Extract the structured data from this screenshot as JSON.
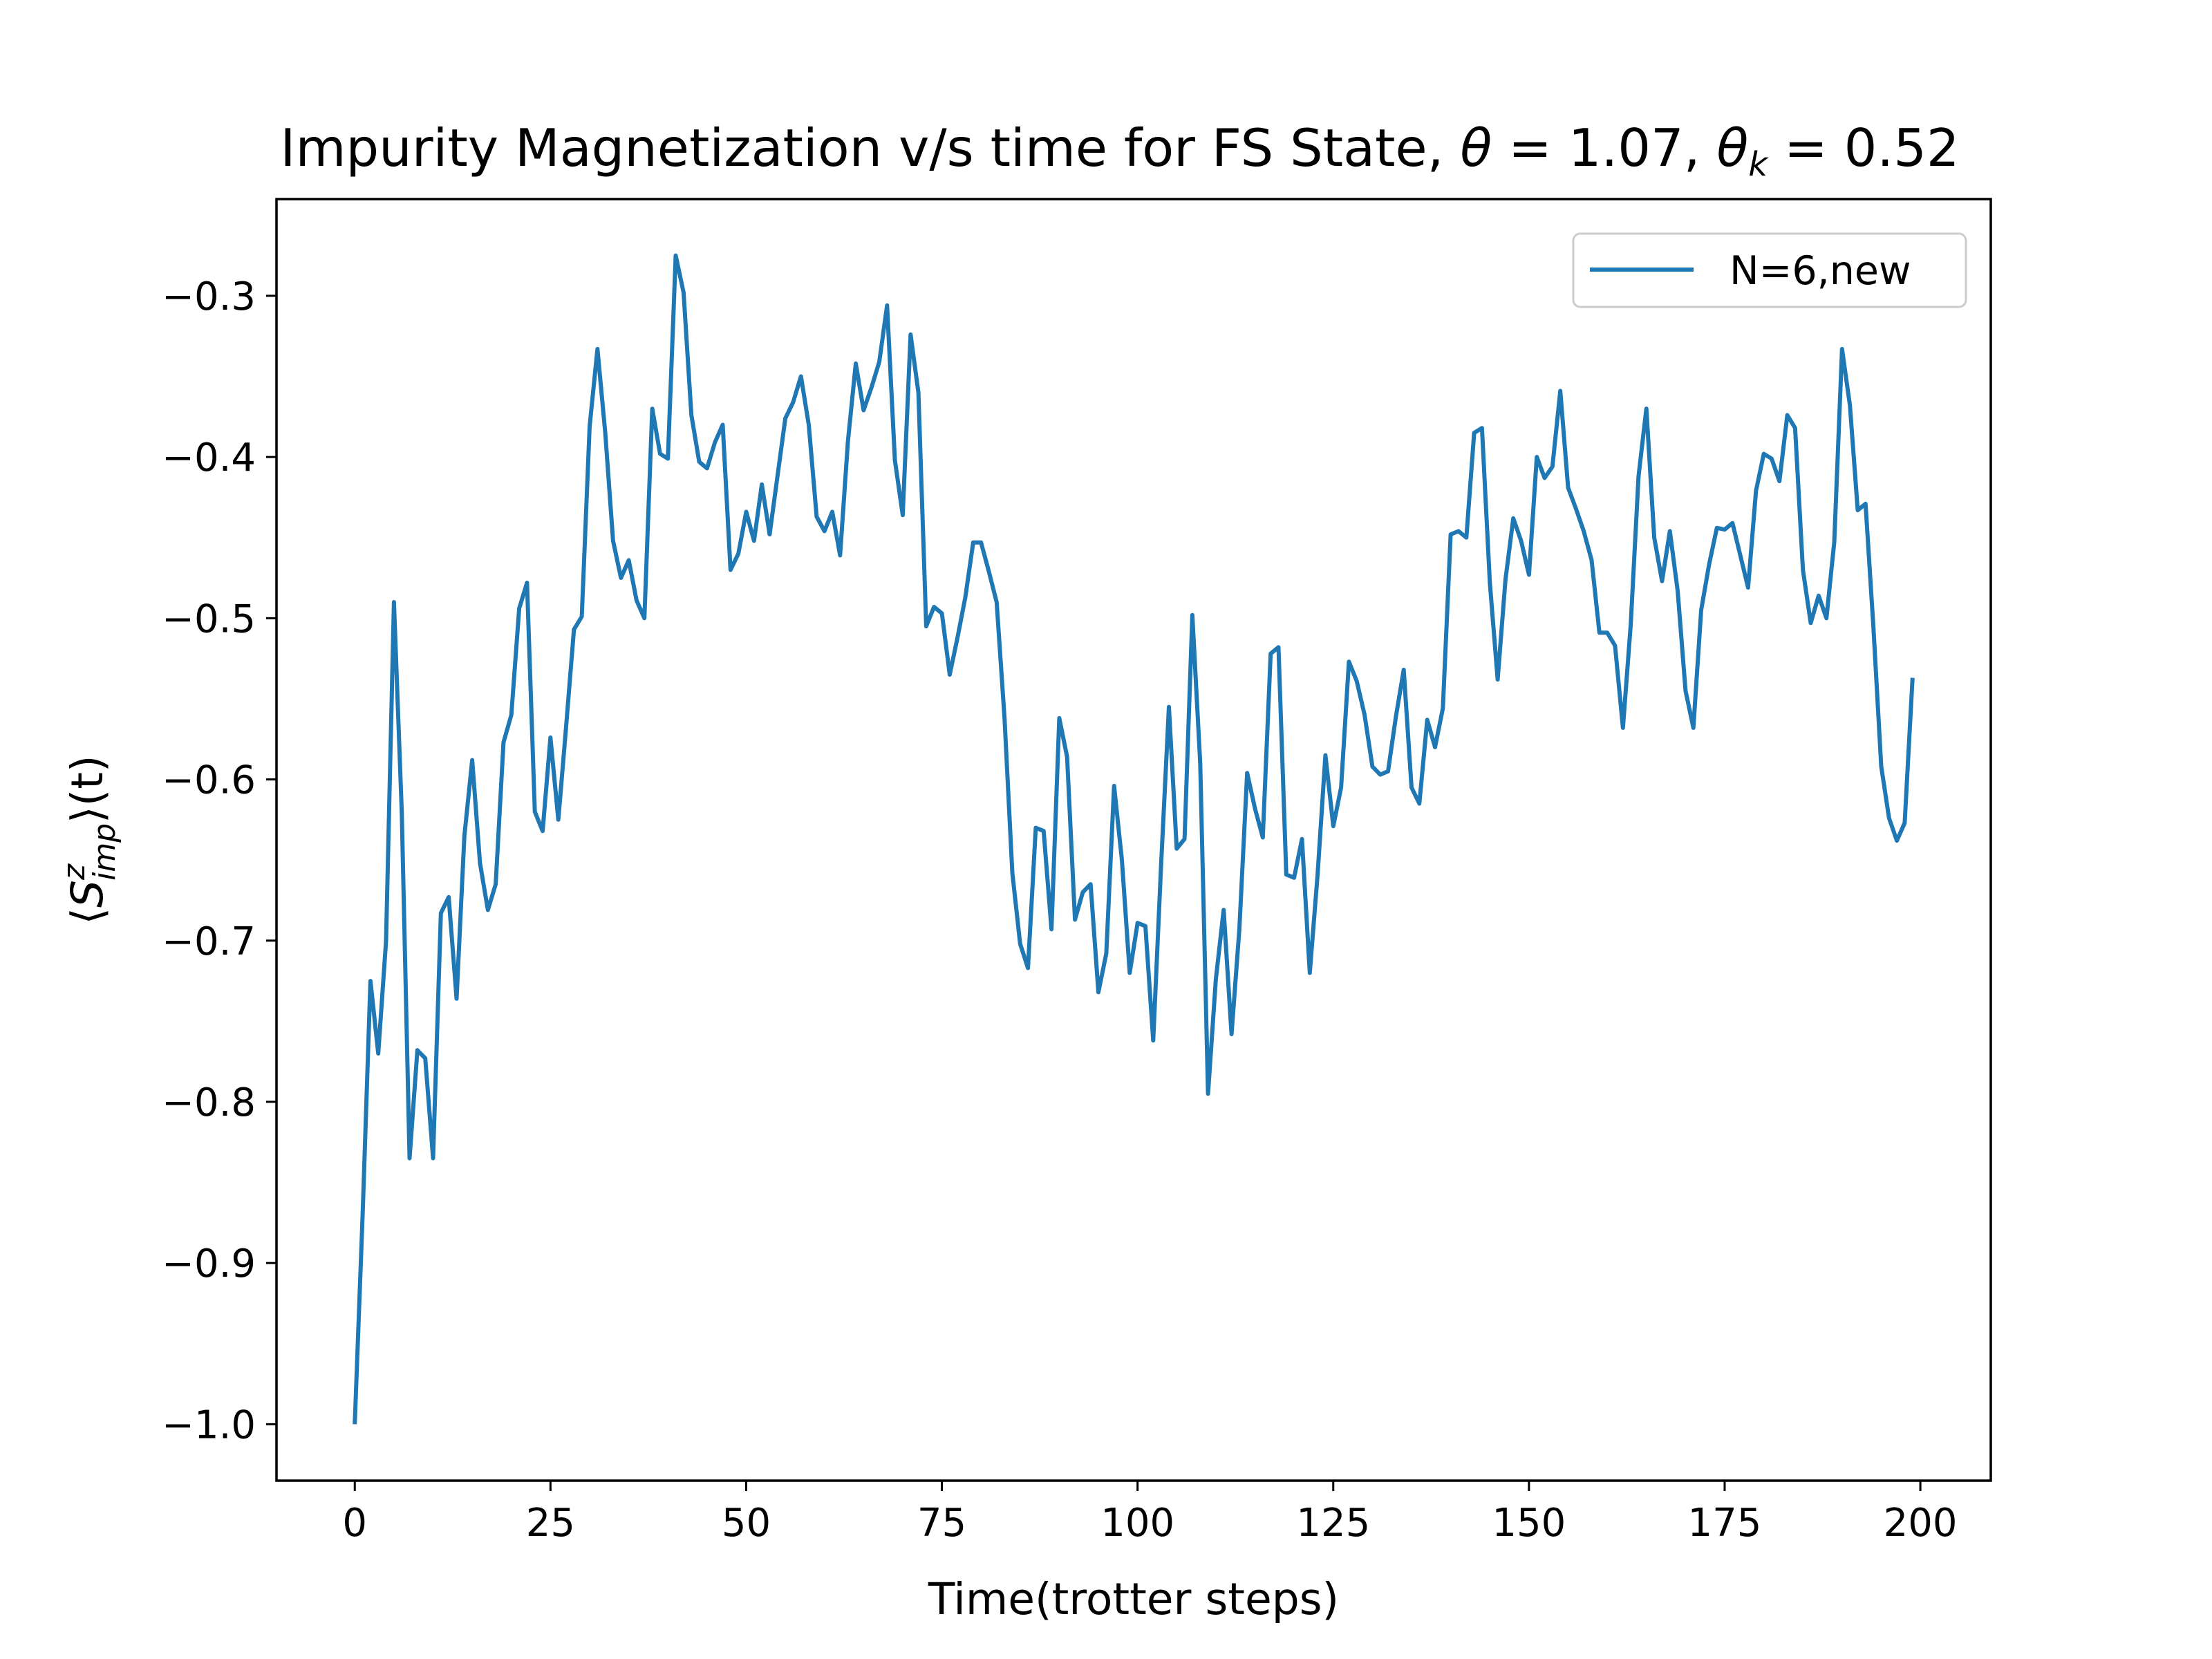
{
  "chart_data": {
    "type": "line",
    "title": "Impurity Magnetization v/s time for FS State, θ = 1.07,  θ_k = 0.52",
    "title_parts": {
      "prefix": "Impurity Magnetization v/s time for FS State, ",
      "theta_symbol": "θ",
      "theta_value": " = 1.07,  ",
      "thetak_symbol": "θ",
      "thetak_sub": "k",
      "thetak_value": " = 0.52"
    },
    "xlabel": "Time(trotter steps)",
    "ylabel": "⟨S^z_imp⟩(t)",
    "ylabel_parts": {
      "open": "⟨",
      "symbol": "S",
      "sup": "z",
      "sub": "imp",
      "close": "⟩(t)"
    },
    "xlim": [
      -10,
      209
    ],
    "ylim": [
      -1.035,
      -0.24
    ],
    "xticks": [
      0,
      25,
      50,
      75,
      100,
      125,
      150,
      175,
      200
    ],
    "xtick_labels": [
      "0",
      "25",
      "50",
      "75",
      "100",
      "125",
      "150",
      "175",
      "200"
    ],
    "yticks": [
      -1.0,
      -0.9,
      -0.8,
      -0.7,
      -0.6,
      -0.5,
      -0.4,
      -0.3
    ],
    "ytick_labels": [
      "−1.0",
      "−0.9",
      "−0.8",
      "−0.7",
      "−0.6",
      "−0.5",
      "−0.4",
      "−0.3"
    ],
    "grid": false,
    "legend_position": "top-right",
    "series": [
      {
        "name": "N=6,new",
        "color": "#1f77b4",
        "x": [
          0,
          1,
          2,
          3,
          4,
          5,
          6,
          7,
          8,
          9,
          10,
          11,
          12,
          13,
          14,
          15,
          16,
          17,
          18,
          19,
          20,
          21,
          22,
          23,
          24,
          25,
          26,
          27,
          28,
          29,
          30,
          31,
          32,
          33,
          34,
          35,
          36,
          37,
          38,
          39,
          40,
          41,
          42,
          43,
          44,
          45,
          46,
          47,
          48,
          49,
          50,
          51,
          52,
          53,
          54,
          55,
          56,
          57,
          58,
          59,
          60,
          61,
          62,
          63,
          64,
          65,
          66,
          67,
          68,
          69,
          70,
          71,
          72,
          73,
          74,
          75,
          76,
          77,
          78,
          79,
          80,
          81,
          82,
          83,
          84,
          85,
          86,
          87,
          88,
          89,
          90,
          91,
          92,
          93,
          94,
          95,
          96,
          97,
          98,
          99,
          100,
          101,
          102,
          103,
          104,
          105,
          106,
          107,
          108,
          109,
          110,
          111,
          112,
          113,
          114,
          115,
          116,
          117,
          118,
          119,
          120,
          121,
          122,
          123,
          124,
          125,
          126,
          127,
          128,
          129,
          130,
          131,
          132,
          133,
          134,
          135,
          136,
          137,
          138,
          139,
          140,
          141,
          142,
          143,
          144,
          145,
          146,
          147,
          148,
          149,
          150,
          151,
          152,
          153,
          154,
          155,
          156,
          157,
          158,
          159,
          160,
          161,
          162,
          163,
          164,
          165,
          166,
          167,
          168,
          169,
          170,
          171,
          172,
          173,
          174,
          175,
          176,
          177,
          178,
          179,
          180,
          181,
          182,
          183,
          184,
          185,
          186,
          187,
          188,
          189,
          190,
          191,
          192,
          193,
          194,
          195,
          196,
          197,
          198,
          199
        ],
        "y": [
          -1.0,
          -0.87,
          -0.725,
          -0.77,
          -0.7,
          -0.49,
          -0.62,
          -0.835,
          -0.768,
          -0.773,
          -0.835,
          -0.683,
          -0.673,
          -0.736,
          -0.635,
          -0.588,
          -0.652,
          -0.681,
          -0.665,
          -0.577,
          -0.56,
          -0.494,
          -0.478,
          -0.62,
          -0.632,
          -0.574,
          -0.625,
          -0.567,
          -0.507,
          -0.499,
          -0.381,
          -0.333,
          -0.385,
          -0.452,
          -0.475,
          -0.464,
          -0.489,
          -0.5,
          -0.37,
          -0.398,
          -0.401,
          -0.275,
          -0.298,
          -0.374,
          -0.403,
          -0.407,
          -0.391,
          -0.38,
          -0.47,
          -0.46,
          -0.434,
          -0.452,
          -0.417,
          -0.448,
          -0.412,
          -0.376,
          -0.366,
          -0.35,
          -0.38,
          -0.437,
          -0.446,
          -0.434,
          -0.461,
          -0.39,
          -0.342,
          -0.371,
          -0.357,
          -0.341,
          -0.306,
          -0.402,
          -0.436,
          -0.324,
          -0.36,
          -0.505,
          -0.493,
          -0.497,
          -0.535,
          -0.512,
          -0.487,
          -0.453,
          -0.453,
          -0.471,
          -0.49,
          -0.562,
          -0.658,
          -0.702,
          -0.717,
          -0.63,
          -0.632,
          -0.693,
          -0.562,
          -0.586,
          -0.687,
          -0.67,
          -0.665,
          -0.732,
          -0.708,
          -0.604,
          -0.65,
          -0.72,
          -0.689,
          -0.691,
          -0.762,
          -0.654,
          -0.555,
          -0.643,
          -0.637,
          -0.498,
          -0.59,
          -0.795,
          -0.724,
          -0.681,
          -0.758,
          -0.693,
          -0.596,
          -0.618,
          -0.636,
          -0.522,
          -0.518,
          -0.659,
          -0.661,
          -0.637,
          -0.72,
          -0.659,
          -0.585,
          -0.629,
          -0.605,
          -0.527,
          -0.539,
          -0.56,
          -0.592,
          -0.597,
          -0.595,
          -0.561,
          -0.532,
          -0.605,
          -0.615,
          -0.563,
          -0.58,
          -0.556,
          -0.448,
          -0.446,
          -0.45,
          -0.385,
          -0.382,
          -0.478,
          -0.538,
          -0.476,
          -0.438,
          -0.452,
          -0.473,
          -0.4,
          -0.413,
          -0.406,
          -0.359,
          -0.419,
          -0.432,
          -0.446,
          -0.464,
          -0.509,
          -0.509,
          -0.517,
          -0.568,
          -0.504,
          -0.412,
          -0.37,
          -0.45,
          -0.477,
          -0.446,
          -0.483,
          -0.545,
          -0.568,
          -0.495,
          -0.467,
          -0.444,
          -0.445,
          -0.441,
          -0.461,
          -0.481,
          -0.421,
          -0.398,
          -0.401,
          -0.415,
          -0.374,
          -0.382,
          -0.47,
          -0.503,
          -0.486,
          -0.5,
          -0.453,
          -0.333,
          -0.368,
          -0.433,
          -0.429,
          -0.505,
          -0.592,
          -0.624,
          -0.638,
          -0.627,
          -0.537
        ]
      }
    ]
  }
}
